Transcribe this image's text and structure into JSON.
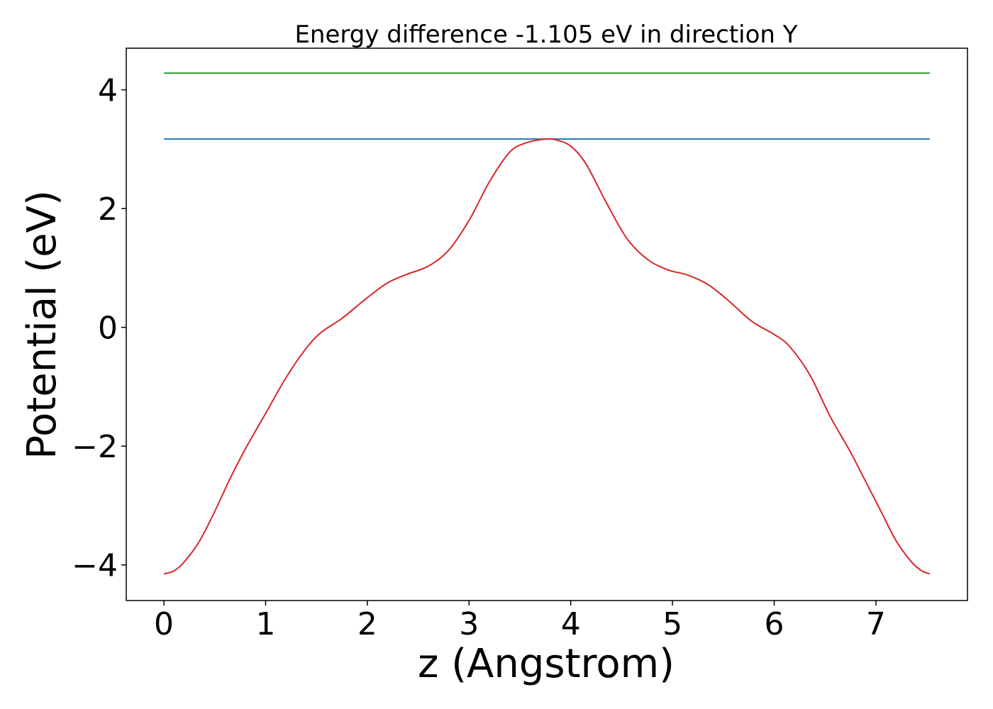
{
  "chart_data": {
    "type": "line",
    "title": "Energy difference -1.105 eV in direction Y",
    "xlabel": "z (Angstrom)",
    "ylabel": "Potential (eV)",
    "xlim": [
      -0.37,
      7.9
    ],
    "ylim": [
      -4.6,
      4.7
    ],
    "xticks": [
      0,
      1,
      2,
      3,
      4,
      5,
      6,
      7
    ],
    "yticks": [
      -4,
      -2,
      0,
      2,
      4
    ],
    "xtick_labels": [
      "0",
      "1",
      "2",
      "3",
      "4",
      "5",
      "6",
      "7"
    ],
    "ytick_labels": [
      "−4",
      "−2",
      "0",
      "2",
      "4"
    ],
    "grid": false,
    "series": [
      {
        "color": "#2ca02c",
        "x": [
          0,
          7.53
        ],
        "y": [
          4.28,
          4.28
        ]
      },
      {
        "color": "#1f77b4",
        "x": [
          0,
          7.53
        ],
        "y": [
          3.17,
          3.17
        ]
      },
      {
        "color": "#d62728",
        "x": [
          0,
          0.1,
          0.2,
          0.35,
          0.5,
          0.65,
          0.8,
          1.0,
          1.2,
          1.4,
          1.55,
          1.75,
          2.0,
          2.2,
          2.4,
          2.6,
          2.8,
          3.0,
          3.2,
          3.4,
          3.55,
          3.7,
          3.77,
          3.85,
          4.0,
          4.15,
          4.35,
          4.55,
          4.75,
          4.95,
          5.15,
          5.35,
          5.55,
          5.78,
          6.0,
          6.15,
          6.35,
          6.55,
          6.75,
          6.9,
          7.05,
          7.2,
          7.35,
          7.45,
          7.53
        ],
        "y": [
          -4.15,
          -4.1,
          -3.95,
          -3.6,
          -3.1,
          -2.55,
          -2.05,
          -1.45,
          -0.85,
          -0.35,
          -0.08,
          0.15,
          0.5,
          0.75,
          0.9,
          1.03,
          1.3,
          1.8,
          2.45,
          2.95,
          3.1,
          3.16,
          3.17,
          3.16,
          3.05,
          2.75,
          2.1,
          1.5,
          1.15,
          0.97,
          0.88,
          0.72,
          0.45,
          0.1,
          -0.12,
          -0.32,
          -0.8,
          -1.5,
          -2.1,
          -2.6,
          -3.1,
          -3.6,
          -3.95,
          -4.1,
          -4.15
        ]
      }
    ]
  }
}
